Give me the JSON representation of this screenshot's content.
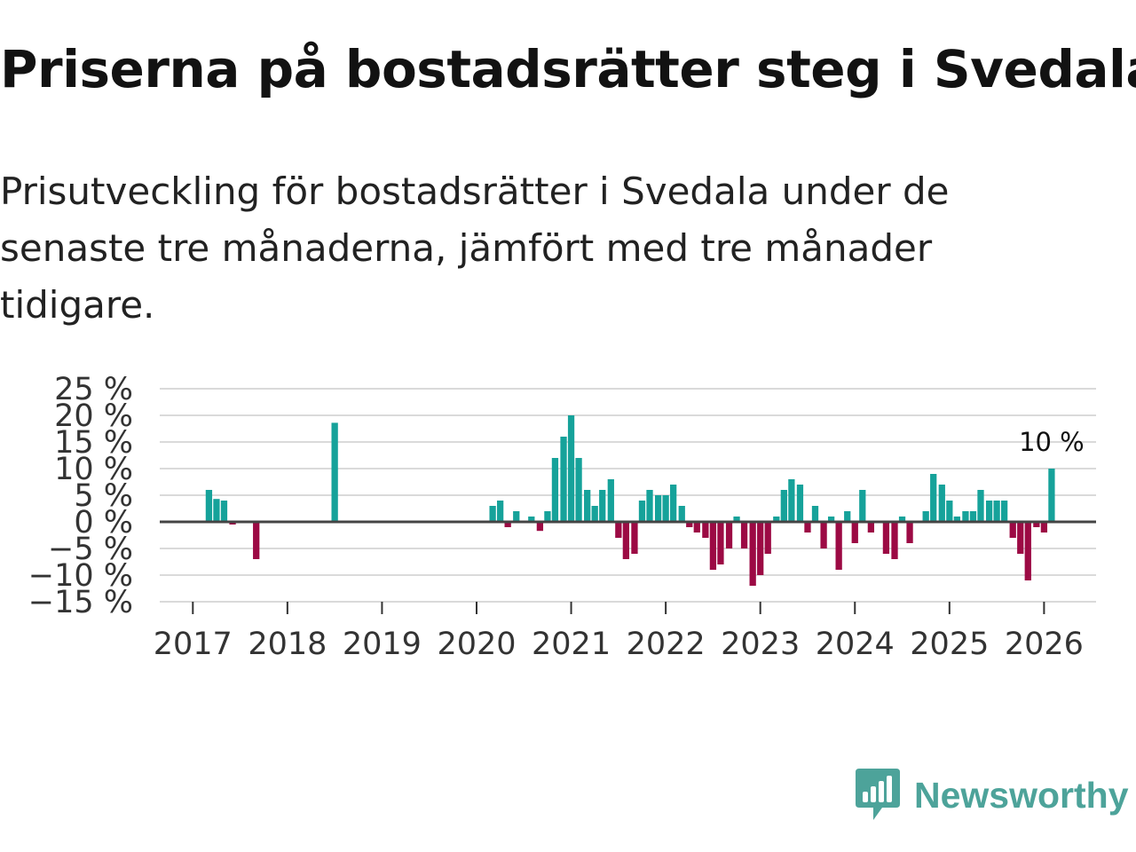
{
  "header": {
    "title": "Priserna på bostadsrätter steg i Svedala",
    "subtitle": "Prisutveckling för bostadsrätter i Svedala under de senaste tre månaderna, jämfört med tre månader tidigare."
  },
  "colors": {
    "positive": "#16A29A",
    "negative": "#9C0A44",
    "grid": "#DADADA",
    "zero_line": "#444444",
    "brand": "#4DA39A"
  },
  "brand": {
    "name": "Newsworthy",
    "icon": "newsworthy-logo-icon"
  },
  "chart_data": {
    "type": "bar",
    "title": "Priserna på bostadsrätter steg i Svedala",
    "xlabel": "",
    "ylabel": "",
    "ylim": [
      -15,
      25
    ],
    "x_range": [
      2016.65,
      2026.55
    ],
    "grid": true,
    "y_ticks": [
      25,
      20,
      15,
      10,
      5,
      0,
      -5,
      -10,
      -15
    ],
    "y_tick_labels": [
      "25 %",
      "20 %",
      "15 %",
      "10 %",
      "5 %",
      "0 %",
      "−5 %",
      "−10 %",
      "−15 %"
    ],
    "x_ticks": [
      2017,
      2018,
      2019,
      2020,
      2021,
      2022,
      2023,
      2024,
      2025,
      2026
    ],
    "x_tick_labels": [
      "2017",
      "2018",
      "2019",
      "2020",
      "2021",
      "2022",
      "2023",
      "2024",
      "2025",
      "2026"
    ],
    "series": [
      {
        "name": "Prisutveckling",
        "x": [
          2017.17,
          2017.25,
          2017.33,
          2017.42,
          2017.67,
          2018.5,
          2020.17,
          2020.25,
          2020.33,
          2020.42,
          2020.58,
          2020.67,
          2020.75,
          2020.83,
          2020.92,
          2021.0,
          2021.08,
          2021.17,
          2021.25,
          2021.33,
          2021.42,
          2021.5,
          2021.58,
          2021.67,
          2021.75,
          2021.83,
          2021.92,
          2022.0,
          2022.08,
          2022.17,
          2022.25,
          2022.33,
          2022.42,
          2022.5,
          2022.58,
          2022.67,
          2022.75,
          2022.83,
          2022.92,
          2023.0,
          2023.08,
          2023.17,
          2023.25,
          2023.33,
          2023.42,
          2023.5,
          2023.58,
          2023.67,
          2023.75,
          2023.83,
          2023.92,
          2024.0,
          2024.08,
          2024.17,
          2024.33,
          2024.42,
          2024.5,
          2024.58,
          2024.75,
          2024.83,
          2024.92,
          2025.0,
          2025.08,
          2025.17,
          2025.25,
          2025.33,
          2025.42,
          2025.5,
          2025.58,
          2025.67,
          2025.75,
          2025.83,
          2025.92,
          2026.0,
          2026.08
        ],
        "values": [
          6,
          4.3,
          4,
          -0.5,
          -7,
          18.6,
          3,
          4,
          -1,
          2,
          1,
          -1.7,
          2,
          12,
          16,
          20,
          12,
          6,
          3,
          6,
          8,
          -3,
          -7,
          -6,
          4,
          6,
          5,
          5,
          7,
          3,
          -1,
          -2,
          -3,
          -9,
          -8,
          -5,
          1,
          -5,
          -12,
          -10,
          -6,
          1,
          6,
          8,
          7,
          -2,
          3,
          -5,
          1,
          -9,
          2,
          -4,
          6,
          -2,
          -6,
          -7,
          1,
          -4,
          2,
          9,
          7,
          4,
          1,
          2,
          2,
          6,
          4,
          4,
          4,
          -3,
          -6,
          -11,
          -1,
          -2,
          10
        ]
      }
    ],
    "annotations": [
      {
        "x": 2026.08,
        "value": 10,
        "text": "10 %"
      }
    ]
  }
}
